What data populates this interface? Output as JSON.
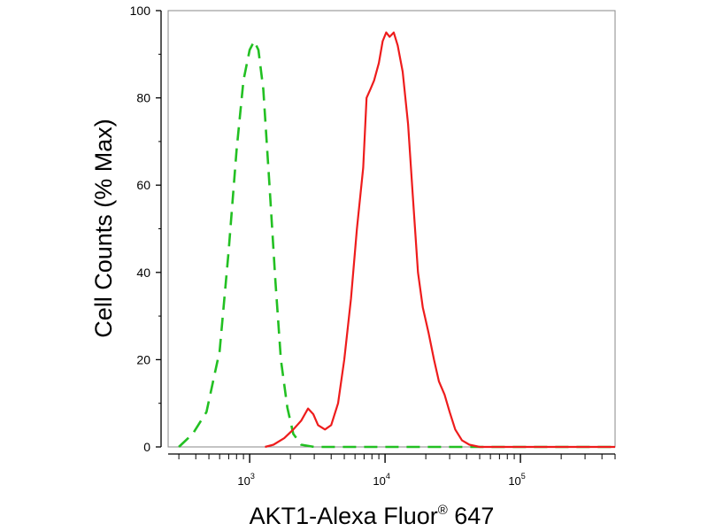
{
  "chart_data": {
    "type": "line",
    "xlabel": "AKT1-Alexa Fluor",
    "xlabel_sup": "®",
    "xlabel_tail": " 647",
    "ylabel": "Cell Counts (% Max)",
    "x_scale": "log",
    "xlim": [
      250,
      500000
    ],
    "ylim": [
      0,
      100
    ],
    "yticks": [
      0,
      20,
      40,
      60,
      80,
      100
    ],
    "xticks_major": [
      {
        "value": 1000,
        "base": "10",
        "exp": "3"
      },
      {
        "value": 10000,
        "base": "10",
        "exp": "4"
      },
      {
        "value": 100000,
        "base": "10",
        "exp": "5"
      }
    ],
    "grid": false,
    "series": [
      {
        "color": "#22c022",
        "style": "dashed",
        "points": [
          [
            300,
            0
          ],
          [
            380,
            3
          ],
          [
            480,
            8
          ],
          [
            600,
            22
          ],
          [
            700,
            45
          ],
          [
            800,
            68
          ],
          [
            900,
            84
          ],
          [
            1000,
            91
          ],
          [
            1080,
            93
          ],
          [
            1160,
            91
          ],
          [
            1260,
            82
          ],
          [
            1400,
            60
          ],
          [
            1550,
            38
          ],
          [
            1700,
            20
          ],
          [
            1900,
            9
          ],
          [
            2100,
            3
          ],
          [
            2400,
            0.5
          ],
          [
            3000,
            0
          ],
          [
            500000,
            0
          ]
        ]
      },
      {
        "color": "#ee1c1c",
        "style": "solid",
        "points": [
          [
            1300,
            0
          ],
          [
            1500,
            0.5
          ],
          [
            1800,
            2
          ],
          [
            2100,
            4
          ],
          [
            2400,
            6
          ],
          [
            2700,
            8.8
          ],
          [
            2950,
            7.5
          ],
          [
            3200,
            5
          ],
          [
            3600,
            4
          ],
          [
            4000,
            5
          ],
          [
            4500,
            10
          ],
          [
            5000,
            20
          ],
          [
            5600,
            34
          ],
          [
            6200,
            50
          ],
          [
            6900,
            64
          ],
          [
            7300,
            80
          ],
          [
            7800,
            82
          ],
          [
            8300,
            84
          ],
          [
            9000,
            88
          ],
          [
            9600,
            93
          ],
          [
            10200,
            95
          ],
          [
            10800,
            94
          ],
          [
            11600,
            95
          ],
          [
            12400,
            92
          ],
          [
            13500,
            86
          ],
          [
            14800,
            74
          ],
          [
            16000,
            58
          ],
          [
            17500,
            40
          ],
          [
            19000,
            32
          ],
          [
            21000,
            26
          ],
          [
            23000,
            20
          ],
          [
            25000,
            15
          ],
          [
            27500,
            12
          ],
          [
            30000,
            8
          ],
          [
            33000,
            4
          ],
          [
            37000,
            1.5
          ],
          [
            42000,
            0.5
          ],
          [
            50000,
            0
          ],
          [
            500000,
            0
          ]
        ]
      }
    ]
  }
}
